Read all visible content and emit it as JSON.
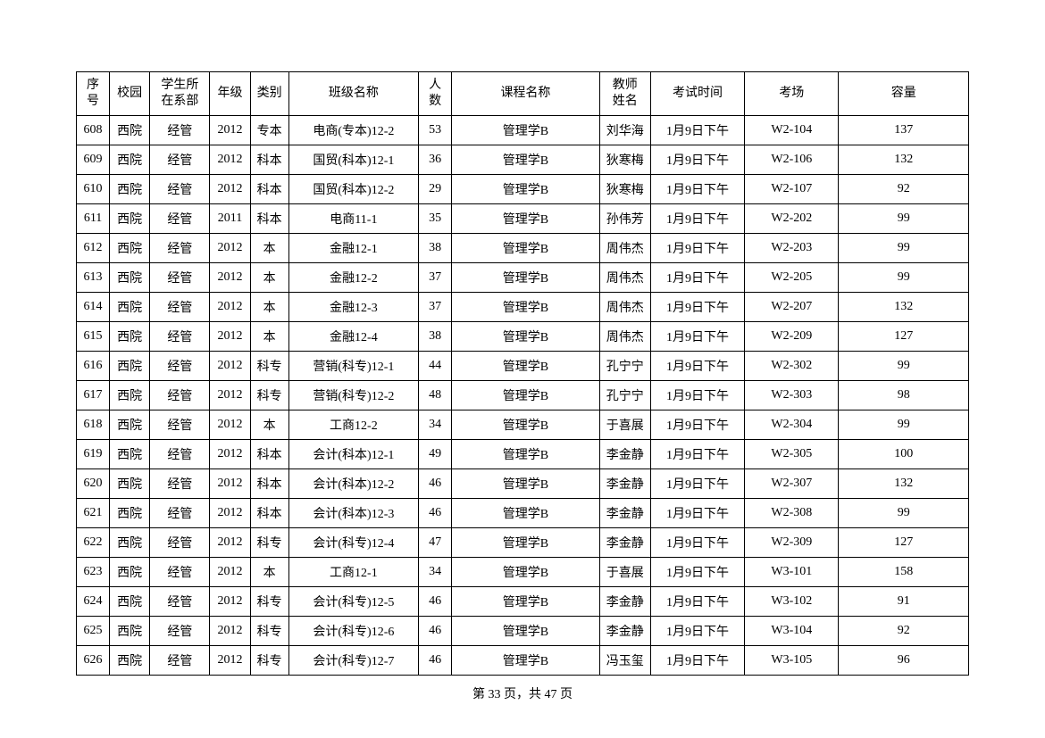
{
  "table": {
    "headers": {
      "seq": "序\n号",
      "campus": "校园",
      "dept": "学生所\n在系部",
      "grade": "年级",
      "type": "类别",
      "class": "班级名称",
      "count": "人\n数",
      "course": "课程名称",
      "teacher": "教师\n姓名",
      "time": "考试时间",
      "room": "考场",
      "capacity": "容量"
    },
    "rows": [
      {
        "seq": "608",
        "campus": "西院",
        "dept": "经管",
        "grade": "2012",
        "type": "专本",
        "class": "电商(专本)12-2",
        "count": "53",
        "course": "管理学B",
        "teacher": "刘华海",
        "time": "1月9日下午",
        "room": "W2-104",
        "capacity": "137"
      },
      {
        "seq": "609",
        "campus": "西院",
        "dept": "经管",
        "grade": "2012",
        "type": "科本",
        "class": "国贸(科本)12-1",
        "count": "36",
        "course": "管理学B",
        "teacher": "狄寒梅",
        "time": "1月9日下午",
        "room": "W2-106",
        "capacity": "132"
      },
      {
        "seq": "610",
        "campus": "西院",
        "dept": "经管",
        "grade": "2012",
        "type": "科本",
        "class": "国贸(科本)12-2",
        "count": "29",
        "course": "管理学B",
        "teacher": "狄寒梅",
        "time": "1月9日下午",
        "room": "W2-107",
        "capacity": "92"
      },
      {
        "seq": "611",
        "campus": "西院",
        "dept": "经管",
        "grade": "2011",
        "type": "科本",
        "class": "电商11-1",
        "count": "35",
        "course": "管理学B",
        "teacher": "孙伟芳",
        "time": "1月9日下午",
        "room": "W2-202",
        "capacity": "99"
      },
      {
        "seq": "612",
        "campus": "西院",
        "dept": "经管",
        "grade": "2012",
        "type": "本",
        "class": "金融12-1",
        "count": "38",
        "course": "管理学B",
        "teacher": "周伟杰",
        "time": "1月9日下午",
        "room": "W2-203",
        "capacity": "99"
      },
      {
        "seq": "613",
        "campus": "西院",
        "dept": "经管",
        "grade": "2012",
        "type": "本",
        "class": "金融12-2",
        "count": "37",
        "course": "管理学B",
        "teacher": "周伟杰",
        "time": "1月9日下午",
        "room": "W2-205",
        "capacity": "99"
      },
      {
        "seq": "614",
        "campus": "西院",
        "dept": "经管",
        "grade": "2012",
        "type": "本",
        "class": "金融12-3",
        "count": "37",
        "course": "管理学B",
        "teacher": "周伟杰",
        "time": "1月9日下午",
        "room": "W2-207",
        "capacity": "132"
      },
      {
        "seq": "615",
        "campus": "西院",
        "dept": "经管",
        "grade": "2012",
        "type": "本",
        "class": "金融12-4",
        "count": "38",
        "course": "管理学B",
        "teacher": "周伟杰",
        "time": "1月9日下午",
        "room": "W2-209",
        "capacity": "127"
      },
      {
        "seq": "616",
        "campus": "西院",
        "dept": "经管",
        "grade": "2012",
        "type": "科专",
        "class": "营销(科专)12-1",
        "count": "44",
        "course": "管理学B",
        "teacher": "孔宁宁",
        "time": "1月9日下午",
        "room": "W2-302",
        "capacity": "99"
      },
      {
        "seq": "617",
        "campus": "西院",
        "dept": "经管",
        "grade": "2012",
        "type": "科专",
        "class": "营销(科专)12-2",
        "count": "48",
        "course": "管理学B",
        "teacher": "孔宁宁",
        "time": "1月9日下午",
        "room": "W2-303",
        "capacity": "98"
      },
      {
        "seq": "618",
        "campus": "西院",
        "dept": "经管",
        "grade": "2012",
        "type": "本",
        "class": "工商12-2",
        "count": "34",
        "course": "管理学B",
        "teacher": "于喜展",
        "time": "1月9日下午",
        "room": "W2-304",
        "capacity": "99"
      },
      {
        "seq": "619",
        "campus": "西院",
        "dept": "经管",
        "grade": "2012",
        "type": "科本",
        "class": "会计(科本)12-1",
        "count": "49",
        "course": "管理学B",
        "teacher": "李金静",
        "time": "1月9日下午",
        "room": "W2-305",
        "capacity": "100"
      },
      {
        "seq": "620",
        "campus": "西院",
        "dept": "经管",
        "grade": "2012",
        "type": "科本",
        "class": "会计(科本)12-2",
        "count": "46",
        "course": "管理学B",
        "teacher": "李金静",
        "time": "1月9日下午",
        "room": "W2-307",
        "capacity": "132"
      },
      {
        "seq": "621",
        "campus": "西院",
        "dept": "经管",
        "grade": "2012",
        "type": "科本",
        "class": "会计(科本)12-3",
        "count": "46",
        "course": "管理学B",
        "teacher": "李金静",
        "time": "1月9日下午",
        "room": "W2-308",
        "capacity": "99"
      },
      {
        "seq": "622",
        "campus": "西院",
        "dept": "经管",
        "grade": "2012",
        "type": "科专",
        "class": "会计(科专)12-4",
        "count": "47",
        "course": "管理学B",
        "teacher": "李金静",
        "time": "1月9日下午",
        "room": "W2-309",
        "capacity": "127"
      },
      {
        "seq": "623",
        "campus": "西院",
        "dept": "经管",
        "grade": "2012",
        "type": "本",
        "class": "工商12-1",
        "count": "34",
        "course": "管理学B",
        "teacher": "于喜展",
        "time": "1月9日下午",
        "room": "W3-101",
        "capacity": "158"
      },
      {
        "seq": "624",
        "campus": "西院",
        "dept": "经管",
        "grade": "2012",
        "type": "科专",
        "class": "会计(科专)12-5",
        "count": "46",
        "course": "管理学B",
        "teacher": "李金静",
        "time": "1月9日下午",
        "room": "W3-102",
        "capacity": "91"
      },
      {
        "seq": "625",
        "campus": "西院",
        "dept": "经管",
        "grade": "2012",
        "type": "科专",
        "class": "会计(科专)12-6",
        "count": "46",
        "course": "管理学B",
        "teacher": "李金静",
        "time": "1月9日下午",
        "room": "W3-104",
        "capacity": "92"
      },
      {
        "seq": "626",
        "campus": "西院",
        "dept": "经管",
        "grade": "2012",
        "type": "科专",
        "class": "会计(科专)12-7",
        "count": "46",
        "course": "管理学B",
        "teacher": "冯玉玺",
        "time": "1月9日下午",
        "room": "W3-105",
        "capacity": "96"
      }
    ]
  },
  "footer": {
    "text": "第 33 页，共 47 页"
  }
}
